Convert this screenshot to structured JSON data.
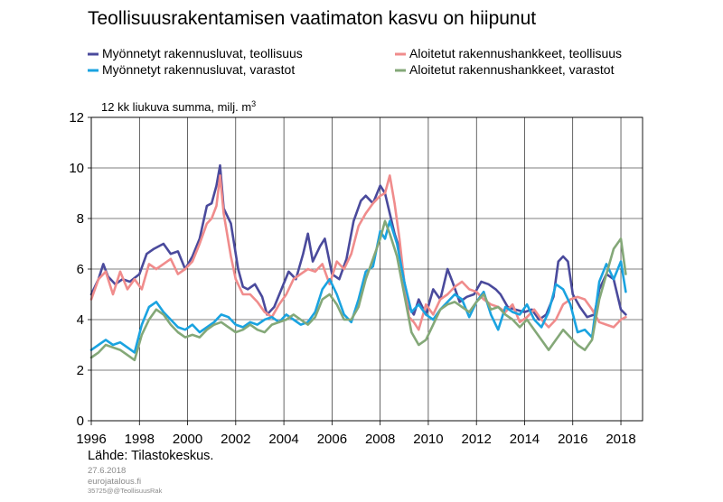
{
  "title": "Teollisuusrakentamisen vaatimaton kasvu on hiipunut",
  "unit_label": "12 kk liukuva summa, milj. m",
  "unit_superscript": "3",
  "source": "Lähde: Tilastokeskus.",
  "footer": {
    "date": "27.6.2018",
    "site": "eurojatalous.fi",
    "code": "35725@@TeollisuusRak"
  },
  "chart_data": {
    "type": "line",
    "title": "Teollisuusrakentamisen vaatimaton kasvu on hiipunut",
    "ylabel": "12 kk liukuva summa, milj. m3",
    "xlabel": "",
    "xlim": [
      1996,
      2018.9
    ],
    "ylim": [
      0,
      12
    ],
    "x_ticks": [
      1996,
      1998,
      2000,
      2002,
      2004,
      2006,
      2008,
      2010,
      2012,
      2014,
      2016,
      2018
    ],
    "y_ticks": [
      0,
      2,
      4,
      6,
      8,
      10,
      12
    ],
    "grid": true,
    "legend_position": "top",
    "series": [
      {
        "name": "Myönnetyt rakennusluvat, teollisuus",
        "color": "#4a4a9c",
        "x": [
          1996.0,
          1996.3,
          1996.5,
          1996.7,
          1997.0,
          1997.3,
          1997.6,
          1998.0,
          1998.3,
          1998.6,
          1999.0,
          1999.3,
          1999.6,
          1999.9,
          2000.2,
          2000.5,
          2000.8,
          2001.0,
          2001.2,
          2001.35,
          2001.5,
          2001.8,
          2002.1,
          2002.3,
          2002.5,
          2002.8,
          2003.1,
          2003.3,
          2003.6,
          2003.9,
          2004.2,
          2004.5,
          2004.8,
          2005.0,
          2005.2,
          2005.5,
          2005.7,
          2006.0,
          2006.3,
          2006.6,
          2006.9,
          2007.2,
          2007.4,
          2007.7,
          2008.0,
          2008.2,
          2008.4,
          2008.6,
          2008.8,
          2009.0,
          2009.2,
          2009.4,
          2009.6,
          2009.9,
          2010.2,
          2010.5,
          2010.8,
          2011.0,
          2011.3,
          2011.6,
          2011.9,
          2012.2,
          2012.5,
          2012.8,
          2013.0,
          2013.3,
          2013.6,
          2014.0,
          2014.3,
          2014.6,
          2014.9,
          2015.2,
          2015.4,
          2015.6,
          2015.8,
          2016.0,
          2016.3,
          2016.6,
          2016.9,
          2017.1,
          2017.4,
          2017.7,
          2018.0,
          2018.2
        ],
        "values": [
          5.0,
          5.6,
          6.2,
          5.7,
          5.4,
          5.6,
          5.5,
          5.8,
          6.6,
          6.8,
          7.0,
          6.6,
          6.7,
          6.0,
          6.5,
          7.2,
          8.5,
          8.6,
          9.3,
          10.1,
          8.4,
          7.8,
          6.0,
          5.3,
          5.2,
          5.4,
          4.9,
          4.2,
          4.5,
          5.2,
          5.9,
          5.6,
          6.6,
          7.4,
          6.3,
          6.9,
          7.2,
          5.8,
          5.6,
          6.4,
          7.9,
          8.7,
          8.9,
          8.6,
          9.3,
          9.0,
          8.2,
          7.4,
          6.8,
          5.5,
          4.5,
          4.2,
          4.8,
          4.2,
          5.2,
          4.8,
          6.0,
          5.5,
          4.7,
          4.9,
          5.0,
          5.5,
          5.4,
          5.2,
          5.0,
          4.5,
          4.4,
          4.3,
          4.4,
          4.0,
          4.2,
          4.9,
          6.3,
          6.5,
          6.3,
          5.0,
          4.5,
          4.1,
          4.2,
          5.2,
          5.8,
          5.6,
          4.4,
          4.2
        ]
      },
      {
        "name": "Aloitetut rakennushankkeet, teollisuus",
        "color": "#f08c8c",
        "x": [
          1996.0,
          1996.3,
          1996.6,
          1996.9,
          1997.2,
          1997.5,
          1997.8,
          1998.1,
          1998.4,
          1998.7,
          1999.0,
          1999.3,
          1999.6,
          1999.9,
          2000.2,
          2000.5,
          2000.8,
          2001.0,
          2001.2,
          2001.35,
          2001.5,
          2001.8,
          2002.0,
          2002.3,
          2002.6,
          2002.9,
          2003.2,
          2003.5,
          2003.8,
          2004.1,
          2004.4,
          2004.7,
          2005.0,
          2005.3,
          2005.6,
          2005.9,
          2006.2,
          2006.5,
          2006.8,
          2007.1,
          2007.4,
          2007.7,
          2008.0,
          2008.2,
          2008.4,
          2008.6,
          2008.8,
          2009.0,
          2009.2,
          2009.4,
          2009.6,
          2009.9,
          2010.2,
          2010.5,
          2010.8,
          2011.1,
          2011.4,
          2011.7,
          2012.0,
          2012.3,
          2012.6,
          2012.9,
          2013.2,
          2013.5,
          2013.8,
          2014.1,
          2014.4,
          2014.7,
          2015.0,
          2015.3,
          2015.6,
          2015.9,
          2016.2,
          2016.5,
          2016.8,
          2017.1,
          2017.4,
          2017.7,
          2018.0,
          2018.2
        ],
        "values": [
          4.8,
          5.6,
          5.9,
          5.0,
          5.9,
          5.2,
          5.6,
          5.2,
          6.2,
          6.0,
          6.2,
          6.4,
          5.8,
          6.0,
          6.3,
          7.0,
          7.8,
          8.0,
          8.5,
          9.7,
          8.2,
          6.5,
          5.6,
          5.0,
          5.0,
          4.7,
          4.3,
          4.1,
          4.6,
          5.0,
          5.6,
          5.8,
          6.0,
          5.9,
          6.2,
          5.4,
          6.3,
          6.0,
          6.6,
          7.7,
          8.2,
          8.6,
          8.9,
          9.0,
          9.7,
          8.6,
          7.2,
          5.5,
          4.1,
          3.9,
          3.6,
          4.6,
          4.2,
          4.8,
          5.0,
          5.3,
          5.5,
          5.2,
          5.1,
          4.8,
          4.6,
          4.5,
          4.3,
          4.6,
          3.9,
          4.1,
          4.4,
          4.0,
          3.7,
          4.0,
          4.6,
          4.8,
          4.9,
          4.8,
          4.4,
          3.9,
          3.8,
          3.7,
          4.0,
          4.1
        ]
      },
      {
        "name": "Myönnetyt rakennusluvat, varastot",
        "color": "#1aa3e0",
        "x": [
          1996.0,
          1996.3,
          1996.6,
          1996.9,
          1997.2,
          1997.5,
          1997.8,
          1998.1,
          1998.4,
          1998.7,
          1999.0,
          1999.3,
          1999.6,
          1999.9,
          2000.2,
          2000.5,
          2000.8,
          2001.1,
          2001.4,
          2001.7,
          2002.0,
          2002.3,
          2002.6,
          2002.9,
          2003.2,
          2003.5,
          2003.8,
          2004.1,
          2004.4,
          2004.7,
          2005.0,
          2005.3,
          2005.6,
          2005.9,
          2006.2,
          2006.5,
          2006.8,
          2007.1,
          2007.4,
          2007.7,
          2008.0,
          2008.2,
          2008.4,
          2008.7,
          2009.0,
          2009.3,
          2009.6,
          2009.9,
          2010.2,
          2010.5,
          2010.8,
          2011.1,
          2011.4,
          2011.7,
          2012.0,
          2012.3,
          2012.6,
          2012.9,
          2013.2,
          2013.5,
          2013.8,
          2014.1,
          2014.4,
          2014.7,
          2015.0,
          2015.3,
          2015.6,
          2015.9,
          2016.2,
          2016.5,
          2016.8,
          2017.1,
          2017.4,
          2017.7,
          2018.0,
          2018.2
        ],
        "values": [
          2.8,
          3.0,
          3.2,
          3.0,
          3.1,
          2.9,
          2.7,
          3.8,
          4.5,
          4.7,
          4.3,
          4.0,
          3.7,
          3.6,
          3.8,
          3.5,
          3.7,
          3.9,
          4.2,
          4.1,
          3.8,
          3.7,
          3.9,
          3.8,
          4.0,
          4.1,
          3.9,
          4.2,
          4.0,
          3.8,
          3.9,
          4.3,
          5.2,
          5.6,
          5.0,
          4.2,
          3.9,
          4.8,
          5.9,
          6.1,
          7.5,
          7.2,
          7.9,
          7.0,
          5.5,
          4.3,
          4.6,
          4.2,
          4.0,
          4.4,
          4.7,
          5.0,
          4.8,
          4.1,
          4.7,
          5.1,
          4.2,
          3.6,
          4.5,
          4.3,
          4.2,
          4.6,
          4.0,
          3.7,
          4.3,
          5.4,
          5.2,
          4.6,
          3.5,
          3.6,
          3.3,
          5.5,
          6.2,
          5.6,
          6.3,
          5.1
        ]
      },
      {
        "name": "Aloitetut rakennushankkeet, varastot",
        "color": "#84a878",
        "x": [
          1996.0,
          1996.3,
          1996.6,
          1996.9,
          1997.2,
          1997.5,
          1997.8,
          1998.1,
          1998.4,
          1998.7,
          1999.0,
          1999.3,
          1999.6,
          1999.9,
          2000.2,
          2000.5,
          2000.8,
          2001.1,
          2001.4,
          2001.7,
          2002.0,
          2002.3,
          2002.6,
          2002.9,
          2003.2,
          2003.5,
          2003.8,
          2004.1,
          2004.4,
          2004.7,
          2005.0,
          2005.3,
          2005.6,
          2005.9,
          2006.2,
          2006.5,
          2006.8,
          2007.1,
          2007.4,
          2007.7,
          2008.0,
          2008.2,
          2008.4,
          2008.7,
          2009.0,
          2009.3,
          2009.6,
          2009.9,
          2010.2,
          2010.5,
          2010.8,
          2011.1,
          2011.4,
          2011.7,
          2012.0,
          2012.3,
          2012.6,
          2012.9,
          2013.2,
          2013.5,
          2013.8,
          2014.1,
          2014.4,
          2014.7,
          2015.0,
          2015.3,
          2015.6,
          2015.9,
          2016.2,
          2016.5,
          2016.8,
          2017.1,
          2017.4,
          2017.7,
          2018.0,
          2018.2
        ],
        "values": [
          2.5,
          2.7,
          3.0,
          2.9,
          2.8,
          2.6,
          2.4,
          3.4,
          4.0,
          4.4,
          4.2,
          3.8,
          3.5,
          3.3,
          3.4,
          3.3,
          3.6,
          3.8,
          3.9,
          3.7,
          3.5,
          3.6,
          3.8,
          3.6,
          3.5,
          3.8,
          3.9,
          4.0,
          4.2,
          4.0,
          3.8,
          4.1,
          4.8,
          5.0,
          4.6,
          4.0,
          4.0,
          4.5,
          5.6,
          6.4,
          7.2,
          7.9,
          7.4,
          6.5,
          5.0,
          3.5,
          3.0,
          3.2,
          3.8,
          4.4,
          4.6,
          4.7,
          4.5,
          4.3,
          4.7,
          5.0,
          4.4,
          4.5,
          4.2,
          4.0,
          3.7,
          4.0,
          3.6,
          3.2,
          2.8,
          3.2,
          3.6,
          3.3,
          3.0,
          2.8,
          3.2,
          4.8,
          5.8,
          6.8,
          7.2,
          5.8
        ]
      }
    ]
  }
}
